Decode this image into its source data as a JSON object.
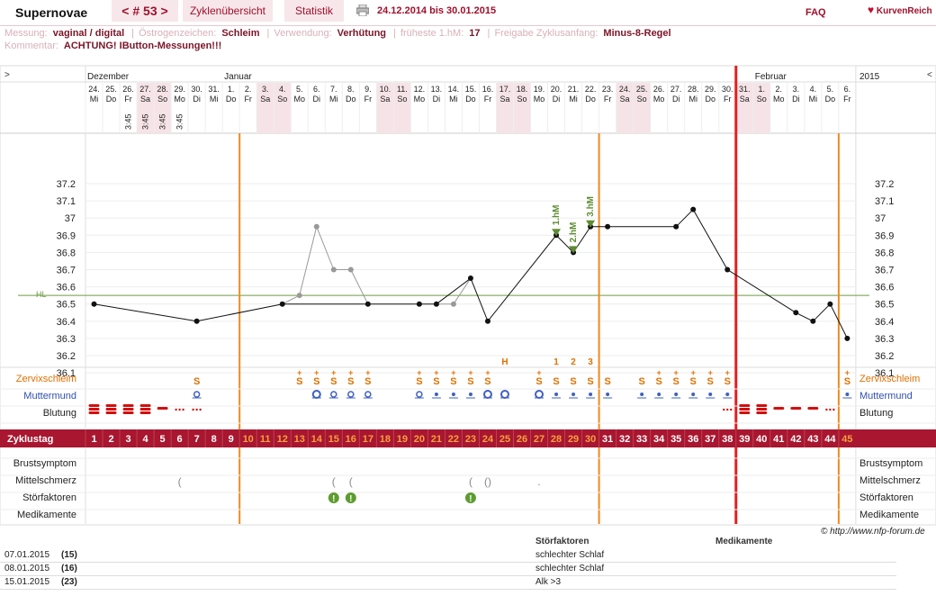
{
  "header": {
    "title": "Supernovae",
    "cycle_nav": "< # 53 >",
    "tabs": [
      "Zyklenübersicht",
      "Statistik"
    ],
    "range": "24.12.2014 bis 30.01.2015",
    "faq": "FAQ",
    "logo": "KurvenReich"
  },
  "meta": {
    "line1": [
      {
        "label": "Messung:",
        "value": "vaginal / digital"
      },
      {
        "label": "Östrogenzeichen:",
        "value": "Schleim"
      },
      {
        "label": "Verwendung:",
        "value": "Verhütung"
      },
      {
        "label": "früheste 1.hM:",
        "value": "17"
      },
      {
        "label": "Freigabe Zyklusanfang:",
        "value": "Minus-8-Regel"
      }
    ],
    "comment_label": "Kommentar:",
    "comment": "ACHTUNG! IButton-Messungen!!!"
  },
  "chart_data": {
    "type": "line",
    "month_labels": [
      "Dezember",
      "Januar",
      "Februar"
    ],
    "year_label": "2015",
    "nav_left": ">",
    "nav_right": "<",
    "dates": [
      "24.",
      "25.",
      "26.",
      "27.",
      "28.",
      "29.",
      "30.",
      "31.",
      "1.",
      "2.",
      "3.",
      "4.",
      "5.",
      "6.",
      "7.",
      "8.",
      "9.",
      "10.",
      "11.",
      "12.",
      "13.",
      "14.",
      "15.",
      "16.",
      "17.",
      "18.",
      "19.",
      "20.",
      "21.",
      "22.",
      "23.",
      "24.",
      "25.",
      "26.",
      "27.",
      "28.",
      "29.",
      "30.",
      "31.",
      "1.",
      "2.",
      "3.",
      "4.",
      "5.",
      "6."
    ],
    "weekdays": [
      "Mi",
      "Do",
      "Fr",
      "Sa",
      "So",
      "Mo",
      "Di",
      "Mi",
      "Do",
      "Fr",
      "Sa",
      "So",
      "Mo",
      "Di",
      "Mi",
      "Do",
      "Fr",
      "Sa",
      "So",
      "Mo",
      "Di",
      "Mi",
      "Do",
      "Fr",
      "Sa",
      "So",
      "Mo",
      "Di",
      "Mi",
      "Do",
      "Fr",
      "Sa",
      "So",
      "Mo",
      "Di",
      "Mi",
      "Do",
      "Fr",
      "Sa",
      "So",
      "Mo",
      "Di",
      "Mi",
      "Do",
      "Fr"
    ],
    "times": {
      "3": "3:45",
      "4": "3:45",
      "5": "3:45",
      "6": "3:45"
    },
    "cycle_days": [
      "1",
      "2",
      "3",
      "4",
      "5",
      "6",
      "7",
      "8",
      "9",
      "10",
      "11",
      "12",
      "13",
      "14",
      "15",
      "16",
      "17",
      "18",
      "19",
      "20",
      "21",
      "22",
      "23",
      "24",
      "25",
      "26",
      "27",
      "28",
      "29",
      "30",
      "31",
      "32",
      "33",
      "34",
      "35",
      "36",
      "37",
      "38",
      "39",
      "40",
      "41",
      "42",
      "43",
      "44",
      "45"
    ],
    "yticks": [
      "37.2",
      "37.1",
      "37",
      "36.9",
      "36.8",
      "36.7",
      "36.6",
      "36.5",
      "36.4",
      "36.3",
      "36.2",
      "36.1"
    ],
    "ylim": [
      36.0,
      37.2
    ],
    "hilo_label": "HL",
    "hilo_value": 36.55,
    "temps": [
      36.5,
      null,
      null,
      null,
      null,
      null,
      36.4,
      null,
      null,
      null,
      null,
      36.5,
      36.55,
      36.95,
      36.7,
      36.7,
      36.5,
      null,
      null,
      36.5,
      36.5,
      36.5,
      36.65,
      36.4,
      null,
      null,
      null,
      36.9,
      36.8,
      36.95,
      36.95,
      null,
      null,
      null,
      36.95,
      37.05,
      null,
      36.7,
      null,
      null,
      null,
      36.45,
      36.4,
      36.5,
      36.3
    ],
    "excluded_days": [
      13,
      14,
      15,
      16,
      22
    ],
    "hm_labels": [
      {
        "day": 28,
        "text": "1.hM"
      },
      {
        "day": 29,
        "text": "2.hM"
      },
      {
        "day": 30,
        "text": "3.hM"
      }
    ],
    "h_mark": {
      "day": 25,
      "text": "H"
    },
    "peak_counts": {
      "28": "1",
      "29": "2",
      "30": "3"
    },
    "row_labels": {
      "mucus": "Zervixschleim",
      "cervix": "Muttermund",
      "bleeding": "Blutung",
      "cycle": "Zyklustag",
      "breast": "Brustsymptom",
      "midpain": "Mittelschmerz",
      "disturb": "Störfaktoren",
      "meds": "Medikamente"
    },
    "mucus": {
      "7": "S",
      "13": "S+",
      "14": "S+",
      "15": "S+",
      "16": "S+",
      "17": "S+",
      "20": "S+",
      "21": "S+",
      "22": "S+",
      "23": "S+",
      "24": "S+",
      "27": "S+",
      "28": "S",
      "29": "S",
      "30": "S",
      "31": "S",
      "33": "S",
      "34": "S+",
      "35": "S+",
      "36": "S+",
      "37": "S+",
      "38": "S+",
      "45": "S+"
    },
    "cervix": {
      "7": "o",
      "14": "O",
      "15": "o",
      "16": "o",
      "17": "o",
      "20": "o",
      "21": "·",
      "22": "·",
      "23": "·",
      "24": "O",
      "25": "O",
      "27": "O",
      "28": "·",
      "29": "·",
      "30": "·",
      "31": "·",
      "33": "·",
      "34": "·",
      "35": "·",
      "36": "·",
      "37": "·",
      "38": "·",
      "45": "·"
    },
    "bleeding": {
      "1": "3",
      "2": "3",
      "3": "3",
      "4": "3",
      "5": "2",
      "6": "1",
      "7": "1",
      "38": "1",
      "39": "3",
      "40": "3",
      "41": "2",
      "42": "2",
      "43": "2",
      "44": "1"
    },
    "midpain": {
      "6": "(",
      "15": "(",
      "16": "(",
      "23": "(",
      "24": "()",
      "27": "."
    },
    "disturb_days": [
      15,
      16,
      23
    ],
    "copyright": "© http://www.nfp-forum.de"
  },
  "bottom": {
    "col_disturb": "Störfaktoren",
    "col_meds": "Medikamente",
    "rows": [
      {
        "date": "07.01.2015",
        "day": "(15)",
        "note": "schlechter Schlaf"
      },
      {
        "date": "08.01.2015",
        "day": "(16)",
        "note": "schlechter Schlaf"
      },
      {
        "date": "15.01.2015",
        "day": "(23)",
        "note": "Alk >3"
      }
    ]
  }
}
